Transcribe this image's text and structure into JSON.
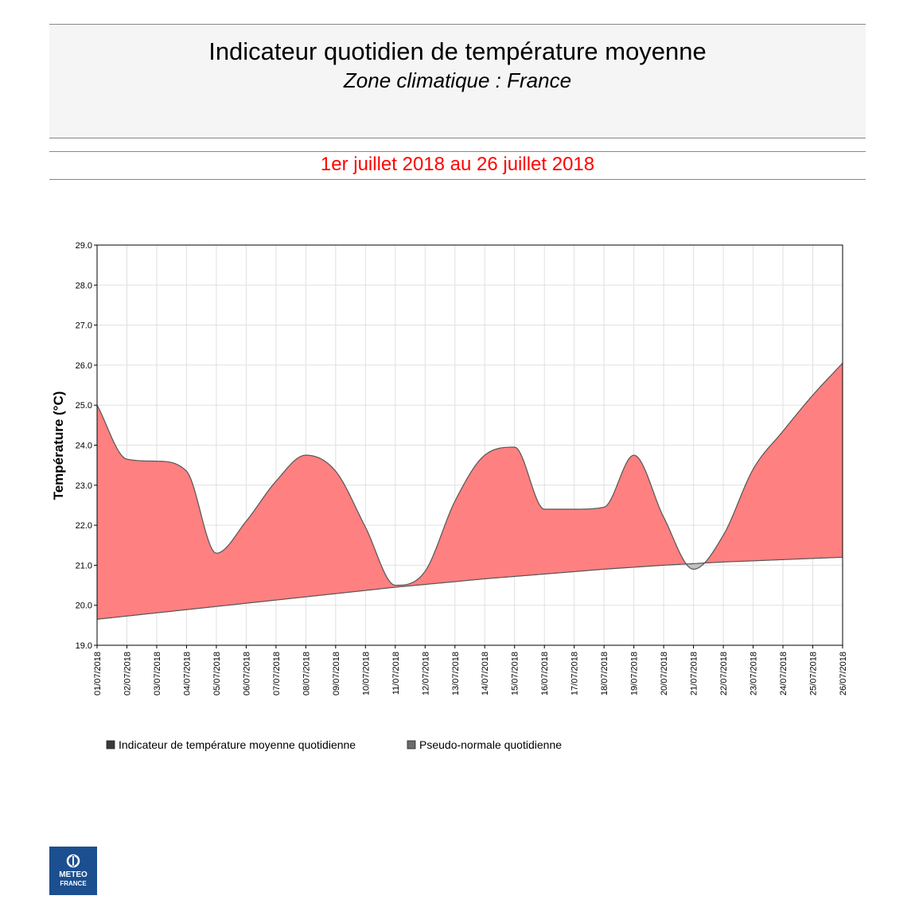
{
  "header": {
    "title": "Indicateur quotidien de température moyenne",
    "subtitle": "Zone climatique : France"
  },
  "period": {
    "label": "1er juillet 2018 au 26 juillet 2018"
  },
  "logo": {
    "line1": "METEO",
    "line2": "FRANCE"
  },
  "colors": {
    "above_fill": "#ff8080",
    "below_fill": "#c0c0c0",
    "line": "#555555",
    "grid": "#e0e0e0",
    "legend_box_1": "#3a3a3a",
    "legend_box_2": "#6b6b6b"
  },
  "chart_data": {
    "type": "area",
    "ylabel": "Température (°C)",
    "ylim": [
      19.0,
      29.0
    ],
    "yticks": [
      "19.0",
      "20.0",
      "21.0",
      "22.0",
      "23.0",
      "24.0",
      "25.0",
      "26.0",
      "27.0",
      "28.0",
      "29.0"
    ],
    "grid": true,
    "legend_position": "bottom",
    "categories": [
      "01/07/2018",
      "02/07/2018",
      "03/07/2018",
      "04/07/2018",
      "05/07/2018",
      "06/07/2018",
      "07/07/2018",
      "08/07/2018",
      "09/07/2018",
      "10/07/2018",
      "11/07/2018",
      "12/07/2018",
      "13/07/2018",
      "14/07/2018",
      "15/07/2018",
      "16/07/2018",
      "17/07/2018",
      "18/07/2018",
      "19/07/2018",
      "20/07/2018",
      "21/07/2018",
      "22/07/2018",
      "23/07/2018",
      "24/07/2018",
      "25/07/2018",
      "26/07/2018"
    ],
    "series": [
      {
        "name": "Indicateur de température moyenne quotidienne",
        "values": [
          25.0,
          23.65,
          23.6,
          23.35,
          21.3,
          22.1,
          23.1,
          23.75,
          23.35,
          21.95,
          20.5,
          20.85,
          22.6,
          23.75,
          23.95,
          22.4,
          22.4,
          22.45,
          23.75,
          22.2,
          20.9,
          21.75,
          23.4,
          24.35,
          25.25,
          26.05
        ]
      },
      {
        "name": "Pseudo-normale quotidienne",
        "values": [
          19.65,
          19.73,
          19.81,
          19.89,
          19.97,
          20.05,
          20.13,
          20.21,
          20.29,
          20.37,
          20.45,
          20.52,
          20.59,
          20.66,
          20.72,
          20.78,
          20.84,
          20.9,
          20.95,
          21.0,
          21.04,
          21.08,
          21.11,
          21.14,
          21.17,
          21.2
        ]
      }
    ]
  }
}
